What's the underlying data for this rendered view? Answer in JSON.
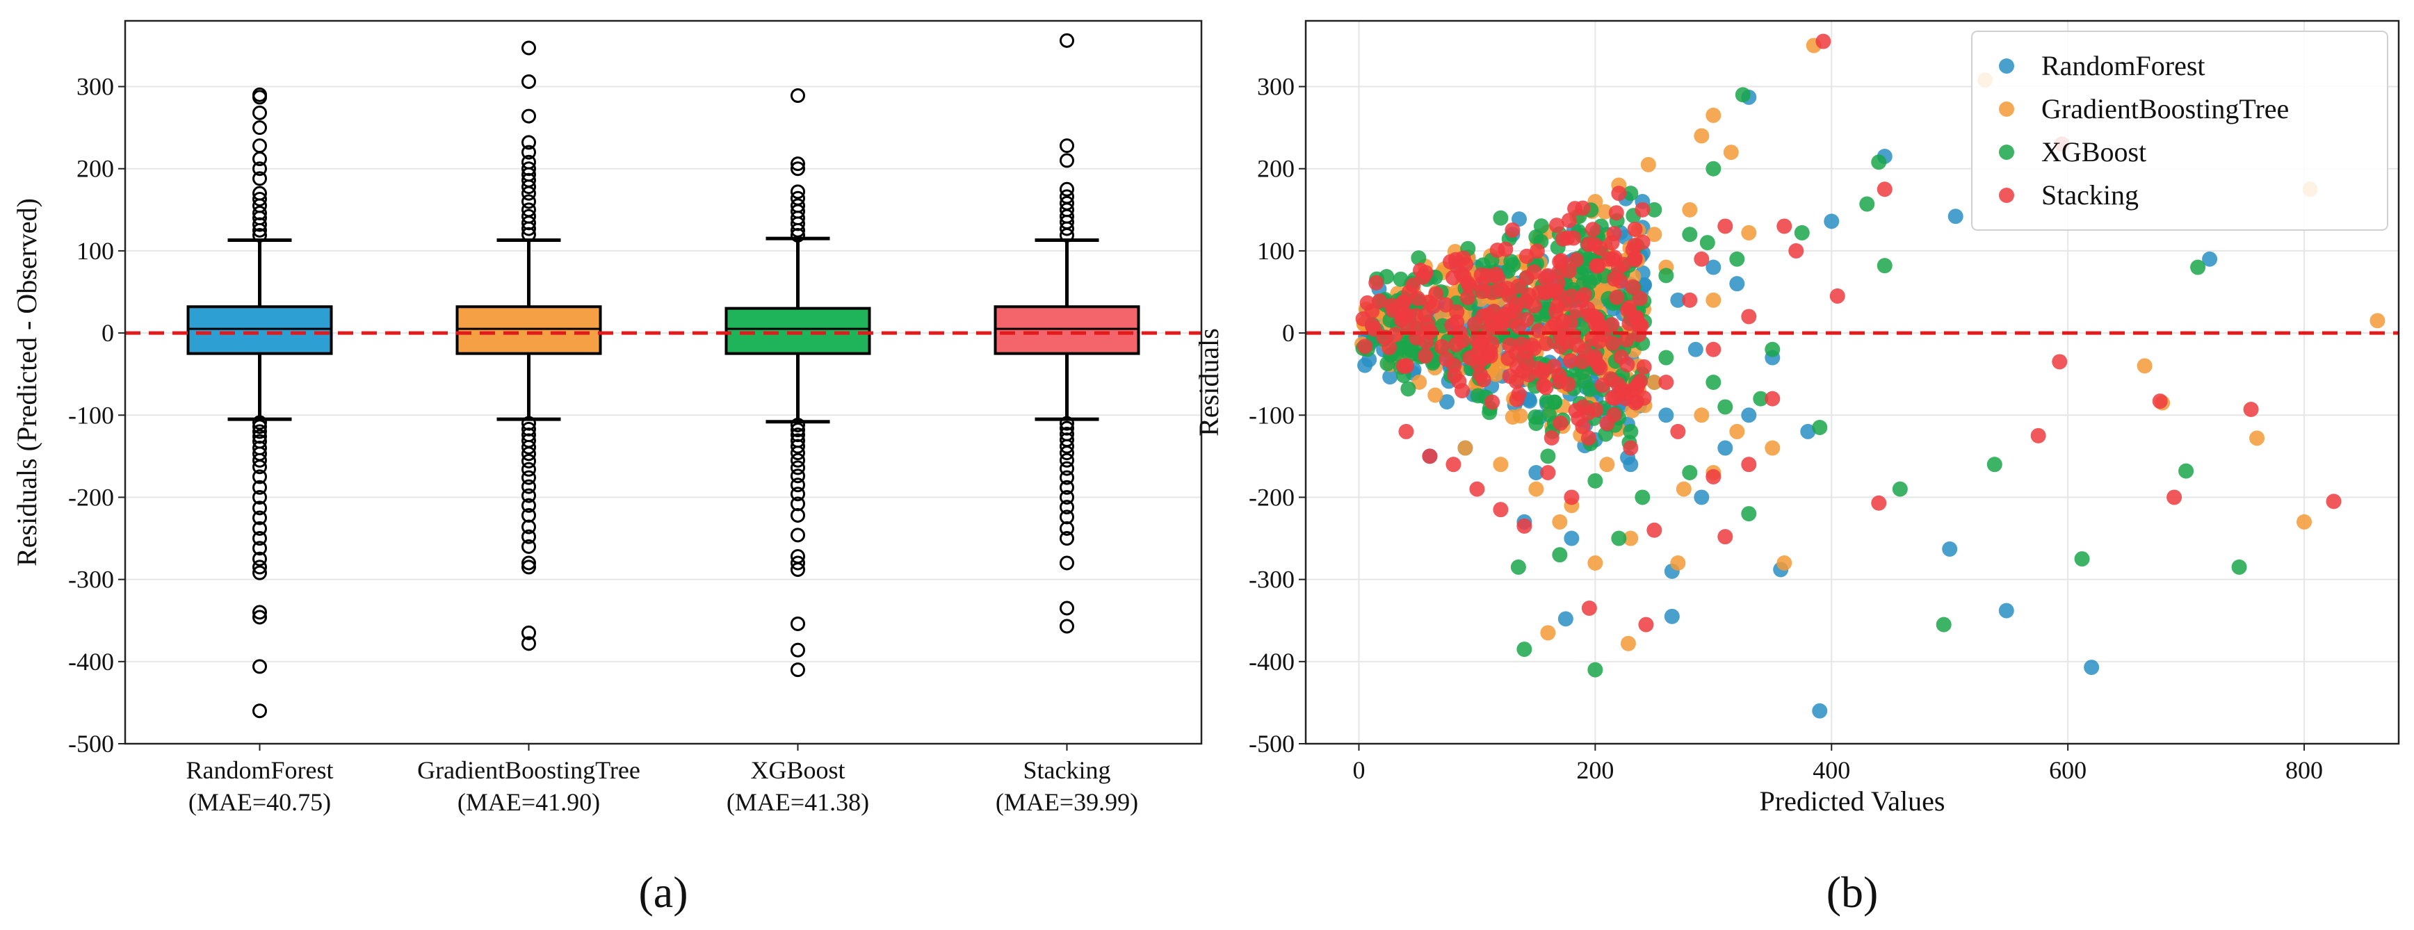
{
  "chart_data": [
    {
      "panel": "(a)",
      "type": "box",
      "ylabel": "Residuals (Predicted - Observed)",
      "ylim": [
        -500,
        380
      ],
      "yticks": [
        -500,
        -400,
        -300,
        -200,
        -100,
        0,
        100,
        200,
        300
      ],
      "grid": true,
      "reference_line": {
        "y": 0,
        "style": "dashed",
        "color": "#e31a1c"
      },
      "categories": [
        {
          "name": "RandomForest",
          "mae": "(MAE=40.75)",
          "color": "#2e9fd2",
          "q1": -25,
          "median": 5,
          "q3": 32,
          "whisker_low": -105,
          "whisker_high": 113,
          "outliers": [
            290,
            287,
            268,
            250,
            228,
            212,
            200,
            188,
            170,
            163,
            155,
            146,
            140,
            132,
            125,
            119,
            -109,
            -114,
            -120,
            -126,
            -132,
            -140,
            -147,
            -155,
            -163,
            -175,
            -188,
            -200,
            -213,
            -225,
            -238,
            -250,
            -262,
            -275,
            -285,
            -292,
            -340,
            -346,
            -406,
            -460
          ]
        },
        {
          "name": "GradientBoostingTree",
          "mae": "(MAE=41.90)",
          "color": "#f5a044",
          "q1": -25,
          "median": 5,
          "q3": 32,
          "whisker_low": -105,
          "whisker_high": 113,
          "outliers": [
            347,
            306,
            264,
            232,
            220,
            208,
            200,
            193,
            186,
            178,
            170,
            160,
            150,
            142,
            134,
            127,
            120,
            -110,
            -117,
            -124,
            -131,
            -139,
            -147,
            -156,
            -166,
            -176,
            -187,
            -198,
            -210,
            -222,
            -236,
            -248,
            -260,
            -280,
            -285,
            -365,
            -378
          ]
        },
        {
          "name": "XGBoost",
          "mae": "(MAE=41.38)",
          "color": "#1fb45a",
          "q1": -25,
          "median": 5,
          "q3": 30,
          "whisker_low": -108,
          "whisker_high": 115,
          "outliers": [
            289,
            206,
            200,
            172,
            164,
            155,
            148,
            140,
            133,
            125,
            119,
            -112,
            -118,
            -124,
            -131,
            -138,
            -146,
            -155,
            -164,
            -174,
            -185,
            -196,
            -208,
            -222,
            -246,
            -272,
            -280,
            -288,
            -354,
            -386,
            -410
          ]
        },
        {
          "name": "Stacking",
          "mae": "(MAE=39.99)",
          "color": "#f4646b",
          "q1": -25,
          "median": 5,
          "q3": 32,
          "whisker_low": -105,
          "whisker_high": 113,
          "outliers": [
            356,
            228,
            210,
            175,
            166,
            158,
            150,
            142,
            135,
            127,
            119,
            -110,
            -116,
            -123,
            -130,
            -138,
            -146,
            -155,
            -165,
            -176,
            -188,
            -200,
            -212,
            -224,
            -238,
            -250,
            -280,
            -335,
            -357
          ]
        }
      ],
      "caption": "(a)"
    },
    {
      "panel": "(b)",
      "type": "scatter",
      "xlabel": "Predicted Values",
      "ylabel": "Residuals",
      "xlim": [
        -45,
        880
      ],
      "ylim": [
        -500,
        380
      ],
      "xticks": [
        0,
        200,
        400,
        600,
        800
      ],
      "yticks": [
        -500,
        -400,
        -300,
        -200,
        -100,
        0,
        100,
        200,
        300
      ],
      "grid": true,
      "legend": "top-right",
      "reference_line": {
        "y": 0,
        "style": "dashed",
        "color": "#e31a1c"
      },
      "series": [
        {
          "name": "RandomForest",
          "color": "#2a8fc4",
          "points": [
            [
              390,
              -460
            ],
            [
              620,
              -407
            ],
            [
              548,
              -338
            ],
            [
              500,
              -263
            ],
            [
              265,
              -290
            ],
            [
              357,
              -288
            ],
            [
              720,
              90
            ],
            [
              505,
              142
            ],
            [
              445,
              215
            ],
            [
              330,
              287
            ],
            [
              400,
              136
            ],
            [
              265,
              -345
            ],
            [
              175,
              -348
            ],
            [
              290,
              -200
            ],
            [
              310,
              -140
            ],
            [
              230,
              -160
            ],
            [
              200,
              -130
            ],
            [
              150,
              -170
            ],
            [
              330,
              -100
            ],
            [
              250,
              -60
            ],
            [
              270,
              40
            ],
            [
              300,
              80
            ],
            [
              350,
              -30
            ],
            [
              210,
              120
            ],
            [
              180,
              -250
            ],
            [
              140,
              -230
            ],
            [
              90,
              -140
            ],
            [
              60,
              -150
            ],
            [
              130,
              120
            ],
            [
              240,
              160
            ],
            [
              320,
              60
            ],
            [
              285,
              -20
            ],
            [
              170,
              -60
            ],
            [
              110,
              60
            ],
            [
              380,
              -120
            ],
            [
              260,
              -100
            ]
          ]
        },
        {
          "name": "GradientBoostingTree",
          "color": "#f59a36",
          "points": [
            [
              385,
              350
            ],
            [
              530,
              308
            ],
            [
              805,
              175
            ],
            [
              862,
              15
            ],
            [
              760,
              -128
            ],
            [
              800,
              -230
            ],
            [
              665,
              -40
            ],
            [
              680,
              -85
            ],
            [
              360,
              -280
            ],
            [
              270,
              -280
            ],
            [
              228,
              -378
            ],
            [
              160,
              -365
            ],
            [
              330,
              122
            ],
            [
              300,
              265
            ],
            [
              290,
              240
            ],
            [
              315,
              220
            ],
            [
              245,
              205
            ],
            [
              220,
              180
            ],
            [
              200,
              160
            ],
            [
              280,
              150
            ],
            [
              250,
              120
            ],
            [
              210,
              100
            ],
            [
              260,
              80
            ],
            [
              300,
              40
            ],
            [
              320,
              -120
            ],
            [
              350,
              -140
            ],
            [
              290,
              -100
            ],
            [
              230,
              -250
            ],
            [
              180,
              -210
            ],
            [
              150,
              -190
            ],
            [
              210,
              -160
            ],
            [
              275,
              -190
            ],
            [
              200,
              -280
            ],
            [
              170,
              -230
            ],
            [
              120,
              -160
            ],
            [
              90,
              -140
            ],
            [
              300,
              -170
            ],
            [
              250,
              -60
            ]
          ]
        },
        {
          "name": "XGBoost",
          "color": "#1aa64a",
          "points": [
            [
              200,
              -410
            ],
            [
              140,
              -385
            ],
            [
              495,
              -355
            ],
            [
              612,
              -275
            ],
            [
              745,
              -285
            ],
            [
              700,
              -168
            ],
            [
              538,
              -160
            ],
            [
              458,
              -190
            ],
            [
              445,
              82
            ],
            [
              440,
              208
            ],
            [
              325,
              290
            ],
            [
              300,
              200
            ],
            [
              295,
              110
            ],
            [
              320,
              90
            ],
            [
              280,
              120
            ],
            [
              250,
              150
            ],
            [
              230,
              170
            ],
            [
              205,
              130
            ],
            [
              260,
              70
            ],
            [
              300,
              -60
            ],
            [
              330,
              -220
            ],
            [
              340,
              -80
            ],
            [
              390,
              -115
            ],
            [
              375,
              122
            ],
            [
              430,
              157
            ],
            [
              710,
              80
            ],
            [
              135,
              -285
            ],
            [
              170,
              -270
            ],
            [
              220,
              -250
            ],
            [
              240,
              -200
            ],
            [
              200,
              -180
            ],
            [
              160,
              -150
            ],
            [
              150,
              -110
            ],
            [
              230,
              -120
            ],
            [
              280,
              -170
            ],
            [
              310,
              -90
            ],
            [
              350,
              -20
            ],
            [
              260,
              -30
            ],
            [
              190,
              60
            ],
            [
              120,
              140
            ]
          ]
        },
        {
          "name": "Stacking",
          "color": "#ef3b3f",
          "points": [
            [
              393,
              355
            ],
            [
              595,
              230
            ],
            [
              445,
              175
            ],
            [
              405,
              45
            ],
            [
              593,
              -35
            ],
            [
              575,
              -125
            ],
            [
              678,
              -83
            ],
            [
              755,
              -93
            ],
            [
              690,
              -200
            ],
            [
              825,
              -205
            ],
            [
              440,
              -207
            ],
            [
              310,
              -248
            ],
            [
              243,
              -355
            ],
            [
              195,
              -335
            ],
            [
              140,
              -235
            ],
            [
              120,
              -215
            ],
            [
              100,
              -190
            ],
            [
              80,
              -160
            ],
            [
              60,
              -150
            ],
            [
              40,
              -120
            ],
            [
              250,
              -240
            ],
            [
              300,
              -175
            ],
            [
              330,
              -160
            ],
            [
              350,
              -80
            ],
            [
              300,
              -20
            ],
            [
              270,
              -120
            ],
            [
              230,
              -140
            ],
            [
              210,
              -110
            ],
            [
              260,
              -60
            ],
            [
              280,
              40
            ],
            [
              290,
              90
            ],
            [
              310,
              130
            ],
            [
              240,
              150
            ],
            [
              220,
              170
            ],
            [
              180,
              -200
            ],
            [
              160,
              -170
            ],
            [
              190,
              -90
            ],
            [
              330,
              20
            ],
            [
              360,
              130
            ],
            [
              370,
              100
            ]
          ]
        }
      ],
      "caption": "(b)"
    }
  ]
}
